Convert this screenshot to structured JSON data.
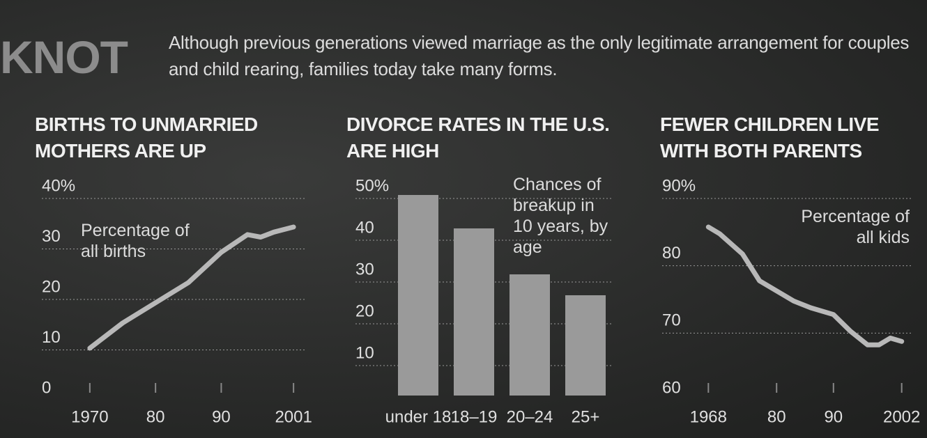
{
  "header": {
    "title": "KNOT",
    "text": "Although previous generations viewed marriage as the only legitimate arrangement for couples and child rearing, families today take many forms."
  },
  "chart_data": [
    {
      "type": "line",
      "title": "BIRTHS TO UNMARRIED MOTHERS ARE UP",
      "annotation": "Percentage of all births",
      "x": [
        1970,
        1975,
        1980,
        1985,
        1990,
        1994,
        1996,
        1998,
        2001
      ],
      "values": [
        8,
        13,
        17,
        21,
        27,
        30.5,
        30,
        31,
        32
      ],
      "color": "#b8b8b8",
      "xlim": [
        1968,
        2003
      ],
      "xticks": [
        1970,
        {
          "value": 1980,
          "label": "80"
        },
        {
          "value": 1990,
          "label": "90"
        },
        2001
      ],
      "ylim": [
        0,
        40
      ],
      "yticks": [
        0,
        10,
        20,
        30,
        {
          "value": 40,
          "label": "40%"
        }
      ],
      "grid": true
    },
    {
      "type": "bar",
      "title": "DIVORCE RATES IN THE U.S. ARE HIGH",
      "annotation": "Chances of breakup in 10 years, by age",
      "categories": [
        "under 18",
        "18–19",
        "20–24",
        "25+"
      ],
      "values": [
        48,
        40,
        29,
        24
      ],
      "color": "#9a9a9a",
      "ylim": [
        0,
        50
      ],
      "yticks": [
        10,
        20,
        30,
        40,
        {
          "value": 50,
          "label": "50%"
        }
      ],
      "grid": true
    },
    {
      "type": "line",
      "title": "FEWER CHILDREN LIVE WITH BOTH PARENTS",
      "annotation": "Percentage of all kids",
      "x": [
        1968,
        1970,
        1974,
        1977,
        1980,
        1983,
        1986,
        1990,
        1993,
        1996,
        1998,
        2000,
        2002
      ],
      "values": [
        84,
        83,
        80,
        76,
        74.5,
        73,
        72,
        71,
        68.5,
        66.5,
        66.5,
        67.5,
        67
      ],
      "color": "#b8b8b8",
      "xlim": [
        1966,
        2004
      ],
      "xticks": [
        1968,
        {
          "value": 1980,
          "label": "80"
        },
        {
          "value": 1990,
          "label": "90"
        },
        2002
      ],
      "ylim": [
        60,
        90
      ],
      "yticks": [
        60,
        70,
        80,
        {
          "value": 90,
          "label": "90%"
        }
      ],
      "grid": true
    }
  ]
}
